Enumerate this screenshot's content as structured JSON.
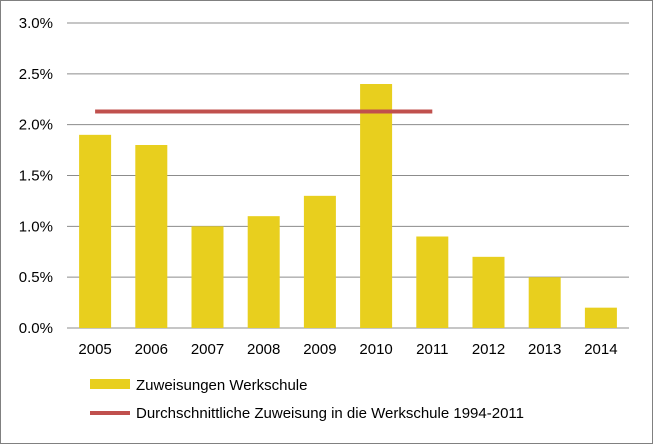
{
  "chart_data": {
    "type": "bar",
    "categories": [
      "2005",
      "2006",
      "2007",
      "2008",
      "2009",
      "2010",
      "2011",
      "2012",
      "2013",
      "2014"
    ],
    "series": [
      {
        "name": "Zuweisungen Werkschule",
        "kind": "bar",
        "color": "#E8CF1E",
        "values": [
          1.9,
          1.8,
          1.0,
          1.1,
          1.3,
          2.4,
          0.9,
          0.7,
          0.5,
          0.2
        ]
      },
      {
        "name": "Durchschnittliche Zuweisung in die Werkschule 1994-2011",
        "kind": "line",
        "color": "#C0504D",
        "y": 2.13,
        "x_start": "2005",
        "x_end": "2011"
      }
    ],
    "y_ticks": [
      "0.0%",
      "0.5%",
      "1.0%",
      "1.5%",
      "2.0%",
      "2.5%",
      "3.0%"
    ],
    "ylim": [
      0,
      3.0
    ],
    "y_unit": "%",
    "grid": true,
    "legend_position": "bottom-left"
  }
}
